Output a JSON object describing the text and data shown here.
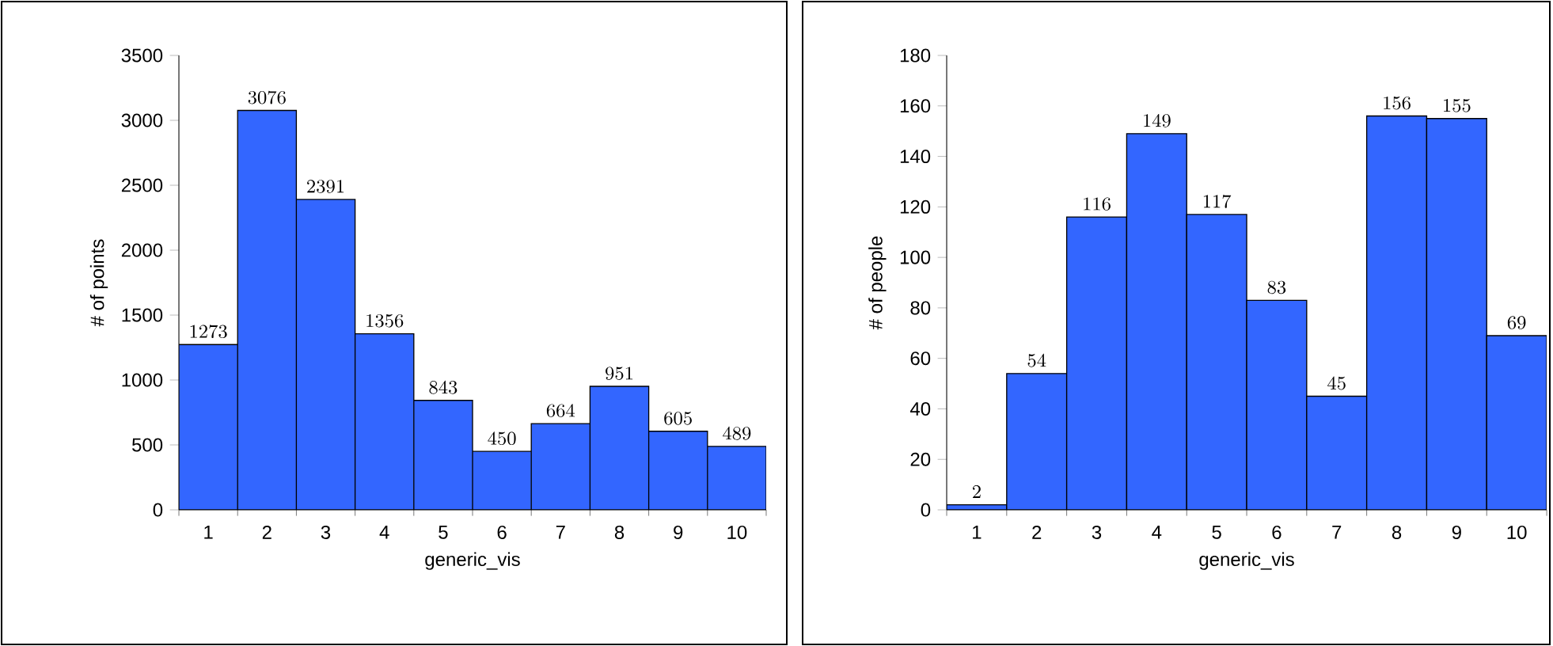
{
  "chart_data": [
    {
      "type": "bar",
      "xlabel": "generic_vis",
      "ylabel": "# of points",
      "categories": [
        "1",
        "2",
        "3",
        "4",
        "5",
        "6",
        "7",
        "8",
        "9",
        "10"
      ],
      "values": [
        1273,
        3076,
        2391,
        1356,
        843,
        450,
        664,
        951,
        605,
        489
      ],
      "color": "#3366ff",
      "ylim": [
        0,
        3500
      ],
      "yticks": [
        0,
        500,
        1000,
        1500,
        2000,
        2500,
        3000,
        3500
      ],
      "data_labels": true
    },
    {
      "type": "bar",
      "xlabel": "generic_vis",
      "ylabel": "# of people",
      "categories": [
        "1",
        "2",
        "3",
        "4",
        "5",
        "6",
        "7",
        "8",
        "9",
        "10"
      ],
      "values": [
        2,
        54,
        116,
        149,
        117,
        83,
        45,
        156,
        155,
        69
      ],
      "color": "#3366ff",
      "ylim": [
        0,
        180
      ],
      "yticks": [
        0,
        20,
        40,
        60,
        80,
        100,
        120,
        140,
        160,
        180
      ],
      "data_labels": true
    }
  ]
}
